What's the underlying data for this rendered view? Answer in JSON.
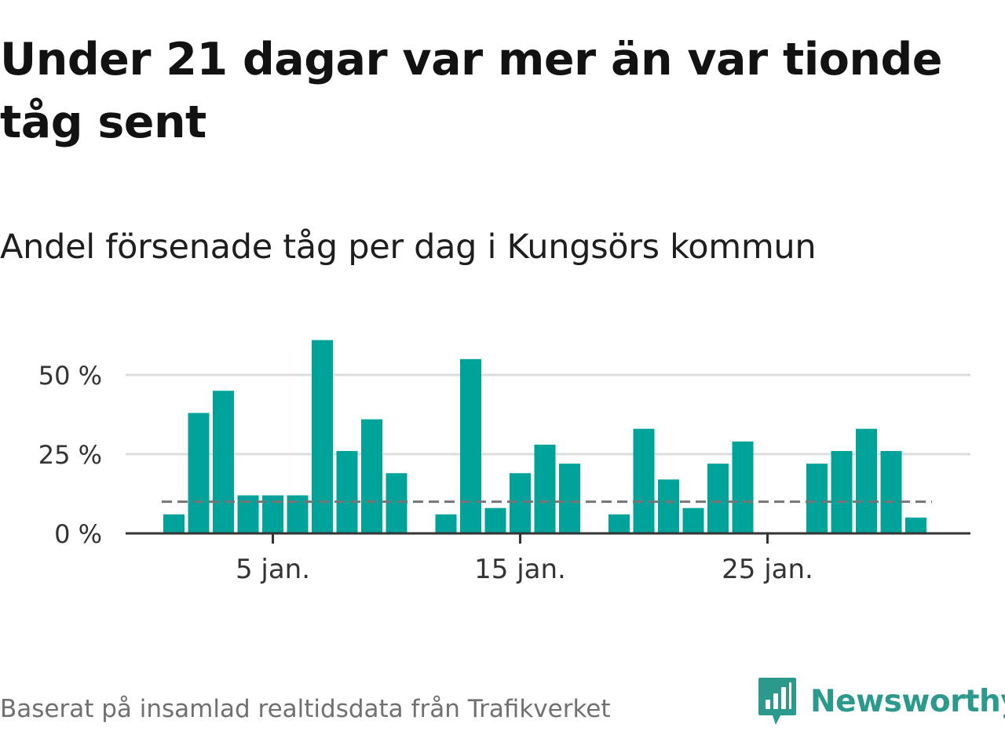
{
  "header": {
    "title": "Under 21 dagar var mer än var tionde tåg sent",
    "subtitle": "Andel försenade tåg per dag i Kungsörs kommun"
  },
  "footer": {
    "source": "Baserat på insamlad realtidsdata från Trafikverket",
    "brand": "Newsworthy"
  },
  "colors": {
    "bar": "#00a39a",
    "reference_line": "#757575",
    "grid": "#dddddd",
    "axis": "#333333",
    "brand": "#2b9a8c"
  },
  "icons": {
    "logo": "newsworthy-logo-icon"
  },
  "chart_data": {
    "type": "bar",
    "x": [
      1,
      2,
      3,
      4,
      5,
      6,
      7,
      8,
      9,
      10,
      11,
      12,
      13,
      14,
      15,
      16,
      17,
      18,
      19,
      20,
      21,
      22,
      23,
      24,
      25,
      26,
      27,
      28,
      29,
      30,
      31
    ],
    "values": [
      6,
      38,
      45,
      12,
      12,
      12,
      61,
      26,
      36,
      19,
      null,
      6,
      55,
      8,
      19,
      28,
      22,
      null,
      6,
      33,
      17,
      8,
      22,
      29,
      0,
      null,
      22,
      26,
      33,
      26,
      5
    ],
    "unit": "%",
    "reference_line": 10,
    "ylim": [
      0,
      62
    ],
    "yticks": [
      {
        "value": 0,
        "label": "0 %"
      },
      {
        "value": 25,
        "label": "25 %"
      },
      {
        "value": 50,
        "label": "50 %"
      }
    ],
    "xticks": [
      {
        "value": 5,
        "label": "5 jan."
      },
      {
        "value": 15,
        "label": "15 jan."
      },
      {
        "value": 25,
        "label": "25 jan."
      }
    ],
    "grid": true,
    "legend": "none"
  }
}
